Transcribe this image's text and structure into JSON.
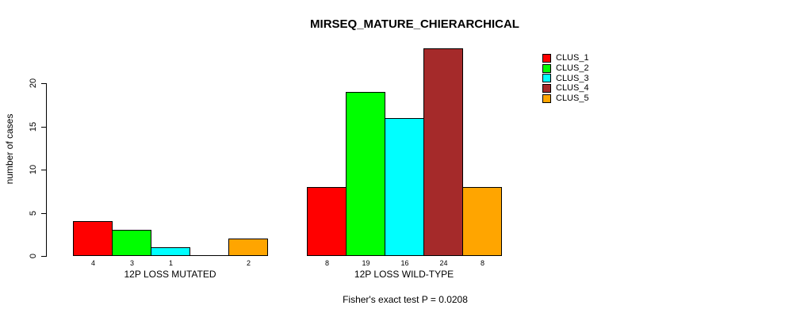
{
  "title": "MIRSEQ_MATURE_CHIERARCHICAL",
  "subtitle": "Fisher's exact test P = 0.0208",
  "ylabel": "number of cases",
  "chart_data": {
    "type": "bar",
    "title": "MIRSEQ_MATURE_CHIERARCHICAL",
    "ylabel": "number of cases",
    "xlabel": "",
    "annotation": "Fisher's exact test P = 0.0208",
    "series": [
      "CLUS_1",
      "CLUS_2",
      "CLUS_3",
      "CLUS_4",
      "CLUS_5"
    ],
    "colors": [
      "#FF0000",
      "#00FF00",
      "#00FFFF",
      "#A52A2A",
      "#FFA500"
    ],
    "groups": [
      {
        "label": "12P LOSS MUTATED",
        "values": [
          4,
          3,
          1,
          0,
          2
        ],
        "bar_labels": [
          "4",
          "3",
          "1",
          "",
          "2"
        ]
      },
      {
        "label": "12P LOSS WILD-TYPE",
        "values": [
          8,
          19,
          16,
          24,
          8
        ],
        "bar_labels": [
          "8",
          "19",
          "16",
          "24",
          "8"
        ]
      }
    ],
    "yticks": [
      0,
      5,
      10,
      15,
      20
    ],
    "ylim": [
      0,
      24.2
    ],
    "grid": false,
    "legend_position": "top-right"
  }
}
